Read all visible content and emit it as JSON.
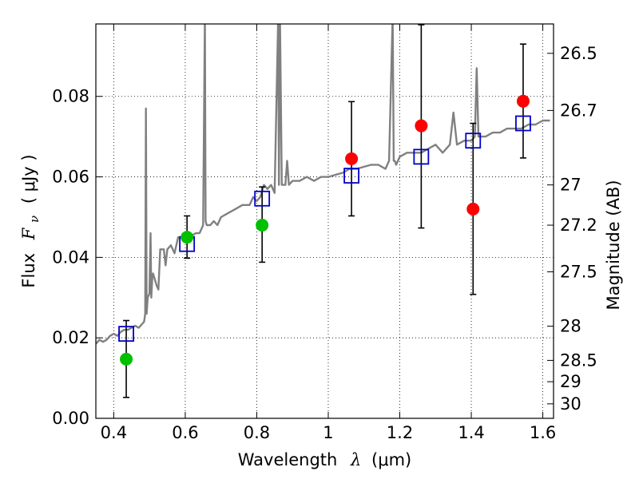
{
  "chart_data": {
    "type": "scatter",
    "xlabel": {
      "text": "Wavelength",
      "symbol": "λ",
      "unit": "(μm)"
    },
    "ylabel": {
      "text": "Flux",
      "symbol": "F",
      "subscript": "ν",
      "unit": "( μJy )"
    },
    "ylabel_right": "Magnitude (AB)",
    "xlim": [
      0.35,
      1.63
    ],
    "ylim": [
      0.0,
      0.098
    ],
    "x_ticks": [
      0.4,
      0.6,
      0.8,
      1.0,
      1.2,
      1.4,
      1.6
    ],
    "x_tick_labels": [
      "0.4",
      "0.6",
      "0.8",
      "1",
      "1.2",
      "1.4",
      "1.6"
    ],
    "y_ticks": [
      0.0,
      0.02,
      0.04,
      0.06,
      0.08
    ],
    "y_tick_labels": [
      "0.00",
      "0.02",
      "0.04",
      "0.06",
      "0.08"
    ],
    "right_ticks": [
      {
        "flux": 0.0907,
        "label": "26.5"
      },
      {
        "flux": 0.0765,
        "label": "26.7"
      },
      {
        "flux": 0.058,
        "label": "27"
      },
      {
        "flux": 0.048,
        "label": "27.2"
      },
      {
        "flux": 0.0364,
        "label": "27.5"
      },
      {
        "flux": 0.0229,
        "label": "28"
      },
      {
        "flux": 0.0144,
        "label": "28.5"
      },
      {
        "flux": 0.0091,
        "label": "29"
      },
      {
        "flux": 0.0036,
        "label": "30"
      }
    ],
    "grid": true,
    "colors": {
      "spectrum": "#808080",
      "model": "#0000cc",
      "observed_green": "#00c000",
      "observed_red": "#ff0000",
      "errorbar": "#000000"
    },
    "series": [
      {
        "kind": "spectrum",
        "x": [
          0.35,
          0.36,
          0.37,
          0.38,
          0.39,
          0.4,
          0.41,
          0.42,
          0.43,
          0.44,
          0.45,
          0.46,
          0.47,
          0.48,
          0.485,
          0.488,
          0.49,
          0.492,
          0.495,
          0.5,
          0.503,
          0.505,
          0.508,
          0.51,
          0.52,
          0.525,
          0.53,
          0.54,
          0.545,
          0.55,
          0.56,
          0.57,
          0.58,
          0.59,
          0.6,
          0.61,
          0.62,
          0.63,
          0.64,
          0.645,
          0.65,
          0.655,
          0.657,
          0.66,
          0.665,
          0.67,
          0.68,
          0.69,
          0.7,
          0.72,
          0.74,
          0.76,
          0.78,
          0.79,
          0.8,
          0.81,
          0.82,
          0.83,
          0.84,
          0.85,
          0.86,
          0.862,
          0.865,
          0.87,
          0.88,
          0.885,
          0.89,
          0.9,
          0.92,
          0.94,
          0.96,
          0.98,
          1.0,
          1.02,
          1.04,
          1.06,
          1.08,
          1.1,
          1.12,
          1.14,
          1.16,
          1.17,
          1.18,
          1.183,
          1.186,
          1.19,
          1.2,
          1.22,
          1.24,
          1.26,
          1.28,
          1.3,
          1.32,
          1.34,
          1.35,
          1.36,
          1.38,
          1.4,
          1.41,
          1.415,
          1.42,
          1.44,
          1.46,
          1.48,
          1.5,
          1.52,
          1.54,
          1.56,
          1.58,
          1.6,
          1.62
        ],
        "y": [
          0.0185,
          0.0195,
          0.019,
          0.0195,
          0.0205,
          0.021,
          0.0205,
          0.0215,
          0.022,
          0.022,
          0.0225,
          0.023,
          0.0225,
          0.0235,
          0.024,
          0.026,
          0.077,
          0.026,
          0.03,
          0.031,
          0.046,
          0.03,
          0.035,
          0.036,
          0.033,
          0.032,
          0.042,
          0.042,
          0.038,
          0.042,
          0.043,
          0.041,
          0.045,
          0.045,
          0.0455,
          0.045,
          0.0455,
          0.046,
          0.046,
          0.047,
          0.048,
          0.1,
          0.049,
          0.048,
          0.048,
          0.048,
          0.049,
          0.048,
          0.05,
          0.051,
          0.052,
          0.053,
          0.053,
          0.055,
          0.054,
          0.055,
          0.058,
          0.057,
          0.058,
          0.056,
          0.1,
          0.058,
          0.1,
          0.058,
          0.058,
          0.064,
          0.058,
          0.059,
          0.059,
          0.06,
          0.059,
          0.06,
          0.06,
          0.0605,
          0.061,
          0.062,
          0.062,
          0.0625,
          0.063,
          0.063,
          0.062,
          0.064,
          0.1,
          0.064,
          0.064,
          0.063,
          0.065,
          0.066,
          0.066,
          0.066,
          0.067,
          0.068,
          0.066,
          0.068,
          0.076,
          0.068,
          0.069,
          0.069,
          0.07,
          0.087,
          0.07,
          0.07,
          0.071,
          0.071,
          0.072,
          0.072,
          0.072,
          0.073,
          0.073,
          0.074,
          0.074
        ]
      },
      {
        "kind": "model",
        "name": "",
        "x": [
          0.435,
          0.605,
          0.815,
          1.065,
          1.26,
          1.405,
          1.545
        ],
        "y": [
          0.021,
          0.0433,
          0.0546,
          0.0603,
          0.065,
          0.069,
          0.0733
        ]
      },
      {
        "kind": "observed",
        "name": "",
        "points": [
          {
            "x": 0.435,
            "y": 0.0147,
            "yerr_low": 0.0052,
            "yerr_high": 0.0243,
            "color": "green"
          },
          {
            "x": 0.605,
            "y": 0.045,
            "yerr_low": 0.0398,
            "yerr_high": 0.0503,
            "color": "green"
          },
          {
            "x": 0.815,
            "y": 0.048,
            "yerr_low": 0.0388,
            "yerr_high": 0.0575,
            "color": "green"
          },
          {
            "x": 1.065,
            "y": 0.0645,
            "yerr_low": 0.0503,
            "yerr_high": 0.0787,
            "color": "red"
          },
          {
            "x": 1.26,
            "y": 0.0727,
            "yerr_low": 0.0473,
            "yerr_high": 0.0978,
            "color": "red"
          },
          {
            "x": 1.405,
            "y": 0.052,
            "yerr_low": 0.0308,
            "yerr_high": 0.0733,
            "color": "red"
          },
          {
            "x": 1.545,
            "y": 0.0788,
            "yerr_low": 0.0647,
            "yerr_high": 0.093,
            "color": "red"
          }
        ]
      }
    ]
  }
}
